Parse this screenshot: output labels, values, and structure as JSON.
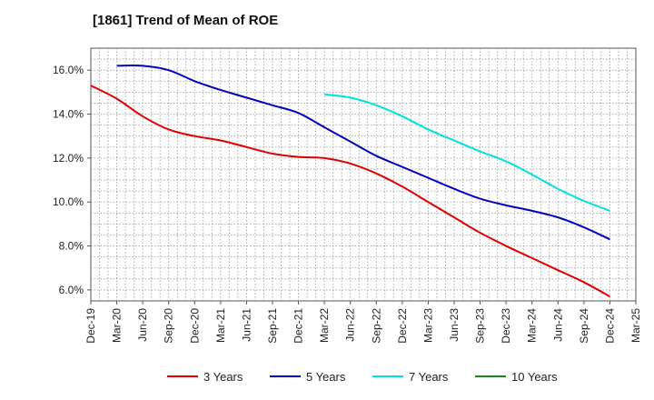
{
  "chart_data": {
    "type": "line",
    "title": "[1861]  Trend of Mean of ROE",
    "xlabel": "",
    "ylabel": "",
    "categories": [
      "Dec-19",
      "Mar-20",
      "Jun-20",
      "Sep-20",
      "Dec-20",
      "Mar-21",
      "Jun-21",
      "Sep-21",
      "Dec-21",
      "Mar-22",
      "Jun-22",
      "Sep-22",
      "Dec-22",
      "Mar-23",
      "Jun-23",
      "Sep-23",
      "Dec-23",
      "Mar-24",
      "Jun-24",
      "Sep-24",
      "Dec-24",
      "Mar-25"
    ],
    "yticks": [
      "6.0%",
      "8.0%",
      "10.0%",
      "12.0%",
      "14.0%",
      "16.0%"
    ],
    "ylim": [
      5.5,
      17.0
    ],
    "grid": true,
    "legend_position": "bottom",
    "series": [
      {
        "name": "3 Years",
        "color": "#e00000",
        "values": [
          15.3,
          14.7,
          13.9,
          13.3,
          13.0,
          12.8,
          12.5,
          12.2,
          12.05,
          12.0,
          11.75,
          11.3,
          10.7,
          10.0,
          9.3,
          8.6,
          8.0,
          7.45,
          6.9,
          6.35,
          5.7,
          null
        ]
      },
      {
        "name": "5 Years",
        "color": "#0000c0",
        "values": [
          null,
          16.2,
          16.2,
          16.0,
          15.5,
          15.1,
          14.75,
          14.4,
          14.05,
          13.4,
          12.75,
          12.1,
          11.6,
          11.1,
          10.6,
          10.15,
          9.85,
          9.6,
          9.3,
          8.85,
          8.3,
          null
        ]
      },
      {
        "name": "7 Years",
        "color": "#00e0e0",
        "values": [
          null,
          null,
          null,
          null,
          null,
          null,
          null,
          null,
          null,
          14.9,
          14.75,
          14.4,
          13.9,
          13.3,
          12.8,
          12.3,
          11.85,
          11.25,
          10.6,
          10.05,
          9.6,
          null
        ]
      },
      {
        "name": "10 Years",
        "color": "#1a8a1a",
        "values": [
          null,
          null,
          null,
          null,
          null,
          null,
          null,
          null,
          null,
          null,
          null,
          null,
          null,
          null,
          null,
          null,
          null,
          null,
          null,
          null,
          null,
          null
        ]
      }
    ]
  }
}
